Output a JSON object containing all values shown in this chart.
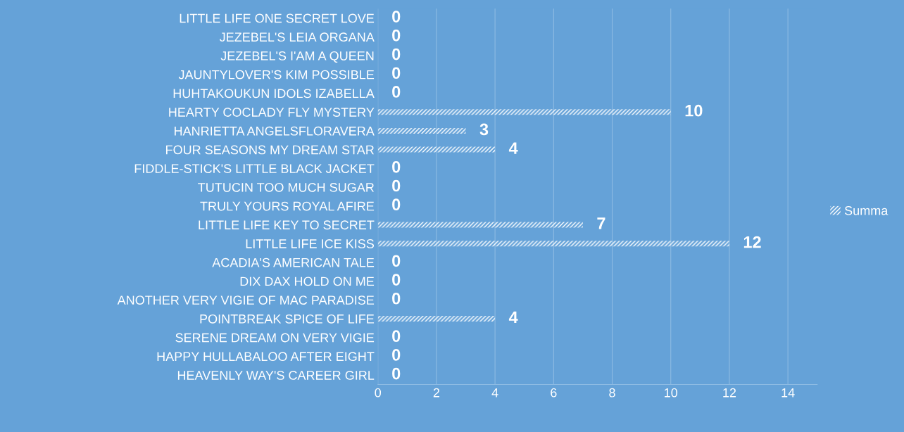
{
  "chart_data": {
    "type": "bar",
    "orientation": "horizontal",
    "categories": [
      "LITTLE LIFE ONE SECRET LOVE",
      "JEZEBEL'S LEIA ORGANA",
      "JEZEBEL'S I'AM A QUEEN",
      "JAUNTYLOVER'S KIM POSSIBLE",
      "HUHTAKOUKUN IDOLS IZABELLA",
      "HEARTY COCLADY FLY MYSTERY",
      "HANRIETTA ANGELSFLORAVERA",
      "FOUR SEASONS MY DREAM STAR",
      "FIDDLE-STICK'S LITTLE BLACK JACKET",
      "TUTUCIN TOO MUCH SUGAR",
      "TRULY YOURS ROYAL AFIRE",
      "LITTLE LIFE KEY TO SECRET",
      "LITTLE LIFE ICE KISS",
      "ACADIA'S AMERICAN TALE",
      "DIX DAX HOLD ON ME",
      "ANOTHER VERY VIGIE OF MAC PARADISE",
      "POINTBREAK SPICE OF LIFE",
      "SERENE DREAM ON VERY VIGIE",
      "HAPPY HULLABALOO AFTER EIGHT",
      "HEAVENLY WAY'S CAREER GIRL"
    ],
    "series": [
      {
        "name": "Summa",
        "color": "#ffffff",
        "values": [
          0,
          0,
          0,
          0,
          0,
          10,
          3,
          4,
          0,
          0,
          0,
          7,
          12,
          0,
          0,
          0,
          4,
          0,
          0,
          0
        ]
      }
    ],
    "xlim": [
      0,
      15
    ],
    "xticks": [
      0,
      2,
      4,
      6,
      8,
      10,
      12,
      14
    ],
    "grid": "x",
    "legend": "right",
    "data_labels": true
  }
}
